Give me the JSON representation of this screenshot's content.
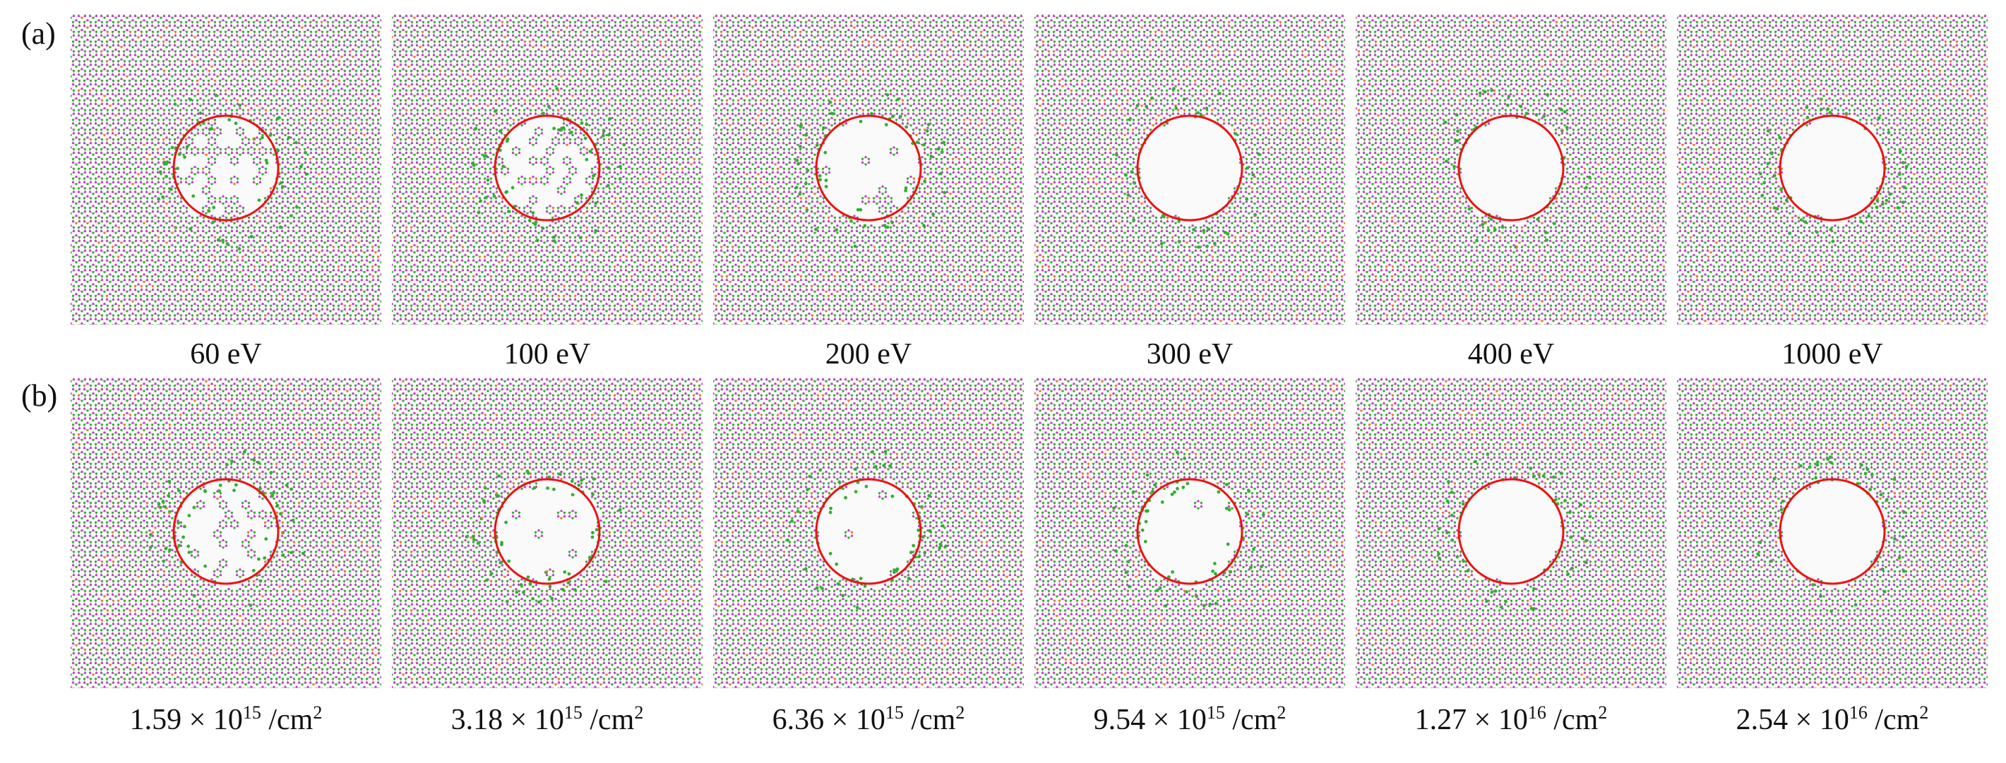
{
  "figure": {
    "rows": [
      {
        "label": "(a)",
        "panels": [
          {
            "caption": "60 eV"
          },
          {
            "caption": "100 eV"
          },
          {
            "caption": "200 eV"
          },
          {
            "caption": "300 eV"
          },
          {
            "caption": "400 eV"
          },
          {
            "caption": "1000 eV"
          }
        ]
      },
      {
        "label": "(b)",
        "panels": [
          {
            "caption_mantissa": "1.59 × 10",
            "caption_exponent": "15",
            "caption_unit": " /cm",
            "caption_unit_exp": "2"
          },
          {
            "caption_mantissa": "3.18 × 10",
            "caption_exponent": "15",
            "caption_unit": " /cm",
            "caption_unit_exp": "2"
          },
          {
            "caption_mantissa": "6.36 × 10",
            "caption_exponent": "15",
            "caption_unit": " /cm",
            "caption_unit_exp": "2"
          },
          {
            "caption_mantissa": "9.54 × 10",
            "caption_exponent": "15",
            "caption_unit": " /cm",
            "caption_unit_exp": "2"
          },
          {
            "caption_mantissa": "1.27 × 10",
            "caption_exponent": "16",
            "caption_unit": " /cm",
            "caption_unit_exp": "2"
          },
          {
            "caption_mantissa": "2.54 × 10",
            "caption_exponent": "16",
            "caption_unit": " /cm",
            "caption_unit_exp": "2"
          }
        ]
      }
    ]
  },
  "colors": {
    "atom_pink": "#c040c0",
    "atom_green": "#30b030",
    "atom_orange": "#e08020",
    "lattice_bond": "#cfa0c8",
    "pore_circle": "#ee1111"
  }
}
